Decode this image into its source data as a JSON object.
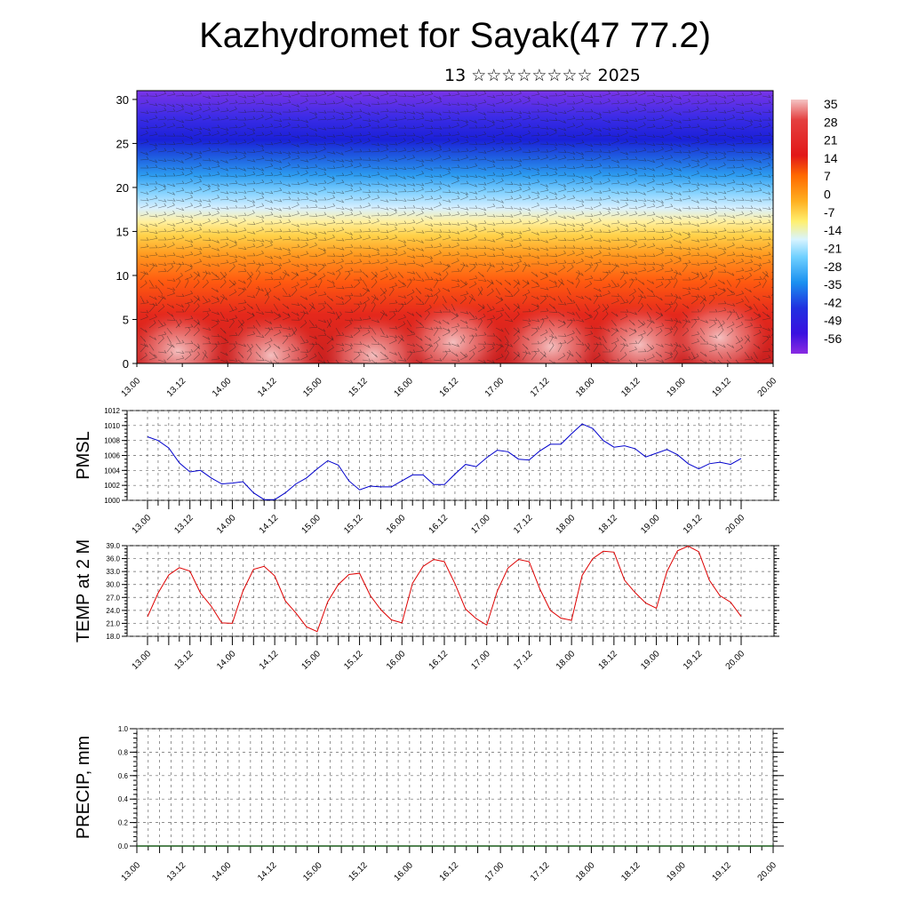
{
  "title": "Kazhydromet for Sayak(47 77.2)",
  "subtitle": "13 ☆☆☆☆☆☆☆☆ 2025",
  "x_tick_labels": [
    "13.00",
    "13.12",
    "14.00",
    "14.12",
    "15.00",
    "15.12",
    "16.00",
    "16.12",
    "17.00",
    "17.12",
    "18.00",
    "18.12",
    "19.00",
    "19.12",
    "20.00"
  ],
  "colorbar": {
    "labels": [
      "35",
      "28",
      "21",
      "14",
      "7",
      "0",
      "-7",
      "-14",
      "-21",
      "-28",
      "-35",
      "-42",
      "-49",
      "-56"
    ],
    "colors": [
      "#f2b8b8",
      "#e23a2a",
      "#ff7a00",
      "#ffe36a",
      "#aee4ff",
      "#1e7cf0",
      "#3a10e0",
      "#8a2be2"
    ]
  },
  "chart_data": [
    {
      "type": "heatmap",
      "name": "cross-section",
      "y_ticks": [
        "30",
        "25",
        "20",
        "15",
        "10",
        "5",
        "0"
      ],
      "ylim": [
        0,
        31
      ],
      "x": [
        "13.00",
        "20.00"
      ],
      "description_levels": [
        {
          "level": 0,
          "value": 30
        },
        {
          "level": 5,
          "value": 24
        },
        {
          "level": 10,
          "value": 14
        },
        {
          "level": 15,
          "value": -7
        },
        {
          "level": 20,
          "value": -28
        },
        {
          "level": 25,
          "value": -56
        },
        {
          "level": 30,
          "value": -45
        }
      ]
    },
    {
      "type": "line",
      "ylabel": "PMSL",
      "ylim": [
        1000,
        1012
      ],
      "y_ticks": [
        "1012",
        "1010",
        "1008",
        "1006",
        "1004",
        "1002",
        "1000"
      ],
      "color": "#0000cc",
      "series": [
        {
          "values": [
            1008.5,
            1008,
            1007,
            1005,
            1003.8,
            1004,
            1003,
            1002.2,
            1002.3,
            1002.5,
            1001,
            1000.1,
            1000.1,
            1001,
            1002.2,
            1003,
            1004.2,
            1005.3,
            1004.7,
            1002.6,
            1001.4,
            1001.9,
            1001.8,
            1001.8,
            1002.6,
            1003.4,
            1003.4,
            1002.1,
            1002.1,
            1003.5,
            1004.8,
            1004.5,
            1005.7,
            1006.7,
            1006.5,
            1005.5,
            1005.4,
            1006.6,
            1007.5,
            1007.5,
            1008.9,
            1010.2,
            1009.6,
            1008,
            1007.1,
            1007.3,
            1006.9,
            1005.8,
            1006.3,
            1006.8,
            1006.1,
            1004.9,
            1004.2,
            1004.9,
            1005.1,
            1004.8,
            1005.6
          ]
        }
      ]
    },
    {
      "type": "line",
      "ylabel": "TEMP at 2 M",
      "ylim": [
        18,
        39
      ],
      "y_ticks": [
        "39.0",
        "36.0",
        "33.0",
        "30.0",
        "27.0",
        "24.0",
        "21.0",
        "18.0"
      ],
      "color": "#dd0000",
      "series": [
        {
          "values": [
            22.5,
            28,
            32.2,
            33.9,
            33.1,
            28,
            25,
            21.1,
            21,
            28.5,
            33.5,
            34.2,
            32,
            26.2,
            23.4,
            20.2,
            19.1,
            26,
            30,
            32.3,
            32.6,
            27.5,
            24.2,
            21.8,
            21.1,
            30.3,
            34.2,
            35.8,
            35.3,
            30.2,
            24.3,
            22.1,
            20.6,
            28.5,
            33.8,
            35.8,
            35.3,
            29,
            24,
            22.2,
            21.7,
            32.1,
            36,
            37.7,
            37.5,
            31,
            28.1,
            25.7,
            24.5,
            33,
            37.8,
            38.9,
            37.6,
            31,
            27.4,
            25.9,
            22.6
          ]
        }
      ]
    },
    {
      "type": "line",
      "ylabel": "PRECIP, mm",
      "ylim": [
        0,
        1
      ],
      "y_ticks": [
        "1.0",
        "0.8",
        "0.6",
        "0.4",
        "0.2",
        "0.0"
      ],
      "color": "#1a5c1a",
      "series": [
        {
          "values": [
            0,
            0,
            0,
            0,
            0,
            0,
            0,
            0,
            0,
            0,
            0,
            0,
            0,
            0,
            0,
            0,
            0,
            0,
            0,
            0,
            0,
            0,
            0,
            0,
            0,
            0,
            0,
            0,
            0,
            0,
            0,
            0,
            0,
            0,
            0,
            0,
            0,
            0,
            0,
            0,
            0,
            0,
            0,
            0,
            0,
            0,
            0,
            0,
            0,
            0,
            0,
            0,
            0,
            0,
            0,
            0,
            0
          ]
        }
      ]
    }
  ]
}
